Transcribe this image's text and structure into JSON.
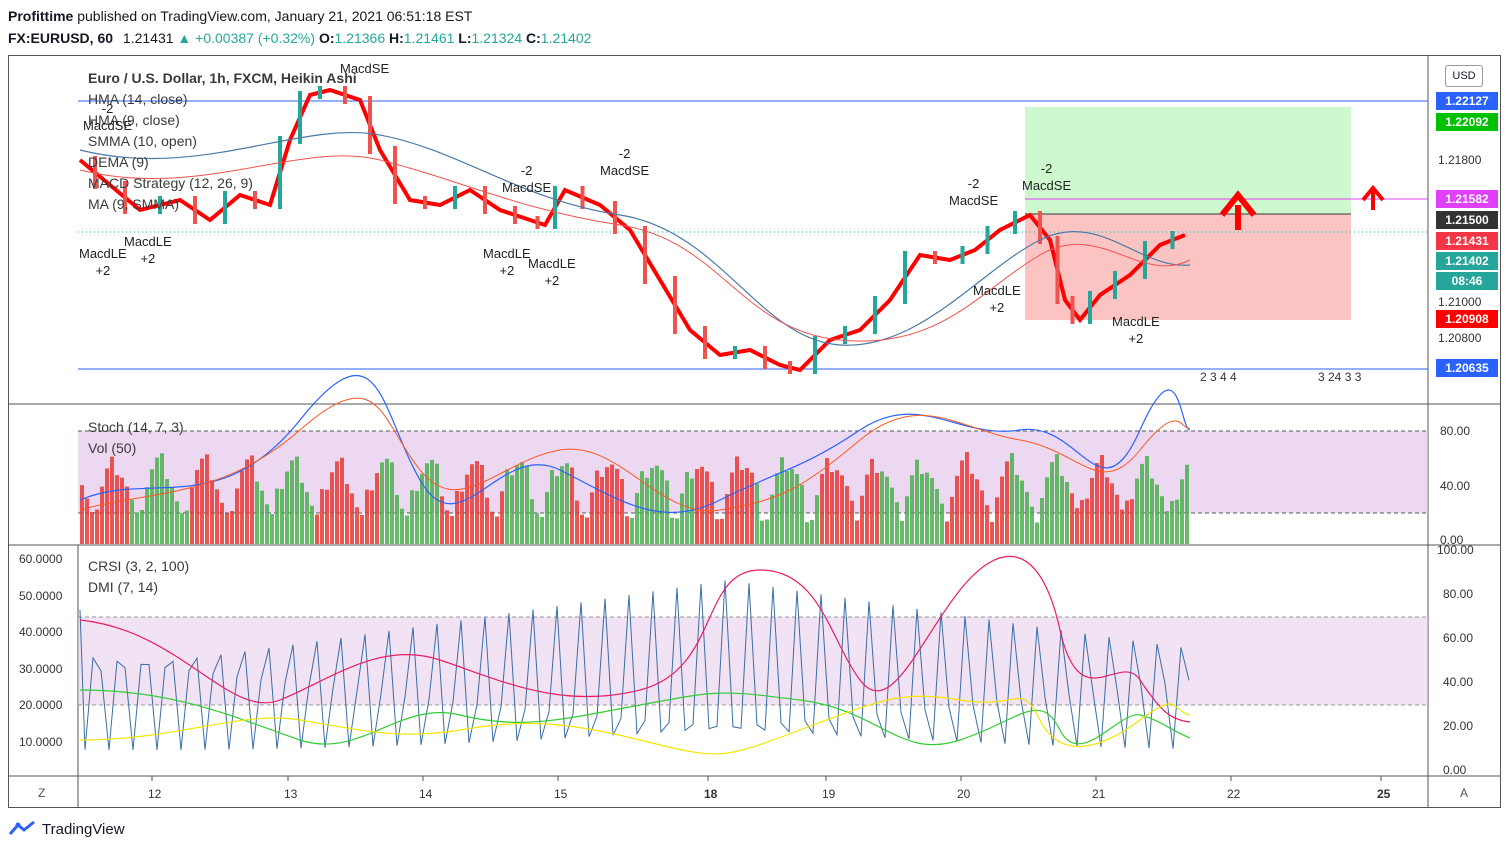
{
  "header": {
    "publisher": "Profittime",
    "published_text": "published on TradingView.com, January 21, 2021 06:51:18 EST",
    "symbol": "FX:EURUSD, 60",
    "last": "1.21431",
    "change": "+0.00387 (+0.32%)",
    "open_label": "O:",
    "open": "1.21366",
    "high_label": "H:",
    "high": "1.21461",
    "low_label": "L:",
    "low": "1.21324",
    "close_label": "C:",
    "close": "1.21402"
  },
  "main_pane": {
    "title": "Euro / U.S. Dollar, 1h, FXCM, Heikin Ashi",
    "indicators": [
      "HMA (14, close)",
      "HMA (9, close)",
      "SMMA (10, open)",
      "DEMA (9)",
      "MACD Strategy (12, 26, 9)",
      "MA (9, SMMA)"
    ],
    "currency_button": "USD",
    "price_axis": [
      "1.21800",
      "1.21000",
      "1.20800"
    ],
    "price_boxes": [
      {
        "label": "1.22127",
        "color": "#2962ff"
      },
      {
        "label": "1.22092",
        "color": "#00c000"
      },
      {
        "label": "1.21582",
        "color": "#e040fb"
      },
      {
        "label": "1.21500",
        "color": "#333333"
      },
      {
        "label": "1.21431",
        "color": "#f23645"
      },
      {
        "label": "1.21402",
        "color": "#26a69a"
      },
      {
        "label": "08:46",
        "color": "#26a69a"
      },
      {
        "label": "1.20908",
        "color": "#ff0000"
      },
      {
        "label": "1.20635",
        "color": "#2962ff"
      }
    ],
    "signals": [
      {
        "text": "MacdSE"
      },
      {
        "text": "-2\nMacdSE"
      },
      {
        "text": "MacdLE\n+2"
      },
      {
        "text": "MacdLE\n+2"
      },
      {
        "text": "-2\nMacdSE"
      },
      {
        "text": "MacdLE\n+2"
      },
      {
        "text": "MacdLE\n+2"
      },
      {
        "text": "-2\nMacdSE"
      },
      {
        "text": "-2\nMacdSE"
      },
      {
        "text": "-2\nMacdSE"
      },
      {
        "text": "MacdLE\n+2"
      },
      {
        "text": "MacdLE\n+2"
      }
    ],
    "event_counts_1": "2 3 4 4",
    "event_counts_2": "3 24 3 3"
  },
  "stoch_pane": {
    "indicators": [
      "Stoch (14, 7, 3)",
      "Vol (50)"
    ],
    "axis": [
      "80.00",
      "40.00",
      "0.00"
    ]
  },
  "crsi_pane": {
    "indicators": [
      "CRSI (3, 2, 100)",
      "DMI (7, 14)"
    ],
    "left_axis": [
      "60.0000",
      "50.0000",
      "40.0000",
      "30.0000",
      "20.0000",
      "10.0000"
    ],
    "right_axis": [
      "100.00",
      "80.00",
      "60.00",
      "40.00",
      "20.00",
      "0.00"
    ]
  },
  "time_axis": [
    "12",
    "13",
    "14",
    "15",
    "18",
    "19",
    "20",
    "21",
    "22",
    "25"
  ],
  "footer": {
    "brand": "TradingView",
    "z_button": "Z",
    "a_button": "A"
  },
  "colors": {
    "up": "#26a69a",
    "down": "#ef5350",
    "accent": "#2962ff"
  }
}
